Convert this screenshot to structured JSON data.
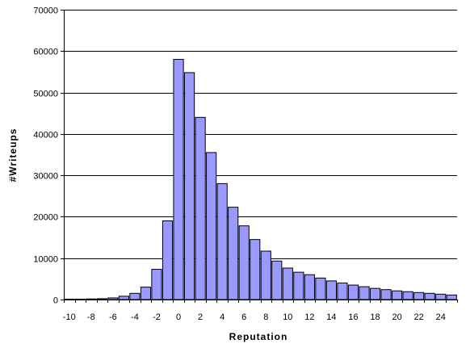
{
  "chart_data": {
    "type": "bar",
    "title": "",
    "xlabel": "Reputation",
    "ylabel": "#Writeups",
    "ylim": [
      0,
      70000
    ],
    "y_ticks": [
      "0",
      "10000",
      "20000",
      "30000",
      "40000",
      "50000",
      "60000",
      "70000"
    ],
    "y_tick_values": [
      0,
      10000,
      20000,
      30000,
      40000,
      50000,
      60000,
      70000
    ],
    "x_tick_labels": [
      "-10",
      "-8",
      "-6",
      "-4",
      "-2",
      "0",
      "2",
      "4",
      "6",
      "8",
      "10",
      "12",
      "14",
      "16",
      "18",
      "20",
      "22",
      "24"
    ],
    "categories": [
      -10,
      -9,
      -8,
      -7,
      -6,
      -5,
      -4,
      -3,
      -2,
      -1,
      0,
      1,
      2,
      3,
      4,
      5,
      6,
      7,
      8,
      9,
      10,
      11,
      12,
      13,
      14,
      15,
      16,
      17,
      18,
      19,
      20,
      21,
      22,
      23,
      24,
      25
    ],
    "values": [
      100,
      100,
      150,
      200,
      400,
      800,
      1500,
      3000,
      7300,
      19000,
      58000,
      54800,
      44000,
      35500,
      28000,
      22300,
      17800,
      14500,
      11700,
      9300,
      7600,
      6600,
      6000,
      5200,
      4500,
      4000,
      3500,
      3100,
      2700,
      2400,
      2100,
      1900,
      1700,
      1500,
      1300,
      1100
    ],
    "bar_color": "#9999ff",
    "bar_stroke": "#000000",
    "grid": true,
    "gridline_color": "#000000",
    "legend": "none"
  }
}
